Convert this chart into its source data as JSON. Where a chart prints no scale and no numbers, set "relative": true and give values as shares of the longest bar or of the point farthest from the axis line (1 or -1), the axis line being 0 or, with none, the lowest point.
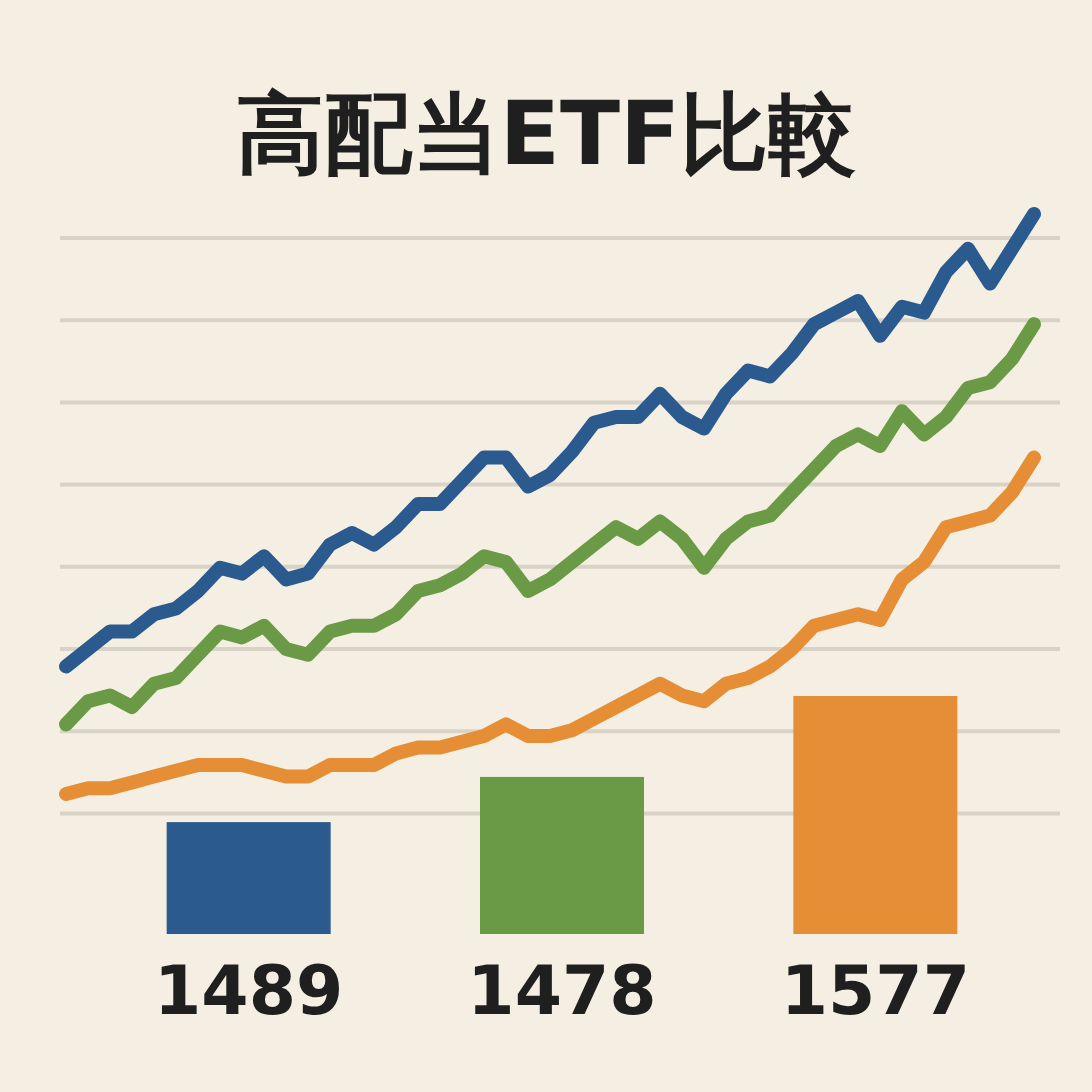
{
  "chart_data": [
    {
      "type": "line",
      "title": "高配当ETF比較",
      "relative": true,
      "grid": "y",
      "marker": "none",
      "line_style": "solid",
      "categories": [
        null,
        null,
        null,
        null,
        null,
        null,
        null,
        null,
        null,
        null,
        null,
        null,
        null,
        null,
        null,
        null,
        null,
        null,
        null,
        null,
        null,
        null,
        null,
        null,
        null,
        null,
        null,
        null,
        null,
        null,
        null,
        null,
        null,
        null,
        null,
        null,
        null,
        null,
        null,
        null,
        null,
        null,
        null,
        null,
        null
      ],
      "series": [
        {
          "color": "#2b5a8e",
          "values": [
            0.22,
            0.25,
            0.28,
            0.28,
            0.31,
            0.32,
            0.35,
            0.39,
            0.38,
            0.41,
            0.37,
            0.38,
            0.43,
            0.45,
            0.43,
            0.46,
            0.5,
            0.5,
            0.54,
            0.58,
            0.58,
            0.53,
            0.55,
            0.59,
            0.64,
            0.65,
            0.65,
            0.69,
            0.65,
            0.63,
            0.69,
            0.73,
            0.72,
            0.76,
            0.81,
            0.83,
            0.85,
            0.79,
            0.84,
            0.83,
            0.9,
            0.94,
            0.88,
            0.94,
            1
          ]
        },
        {
          "color": "#6b9a47",
          "values": [
            0.12,
            0.16,
            0.17,
            0.15,
            0.19,
            0.2,
            0.24,
            0.28,
            0.27,
            0.29,
            0.25,
            0.24,
            0.28,
            0.29,
            0.29,
            0.31,
            0.35,
            0.36,
            0.38,
            0.41,
            0.4,
            0.35,
            0.37,
            0.4,
            0.43,
            0.46,
            0.44,
            0.47,
            0.44,
            0.39,
            0.44,
            0.47,
            0.48,
            0.52,
            0.56,
            0.6,
            0.62,
            0.6,
            0.66,
            0.62,
            0.65,
            0.7,
            0.71,
            0.75,
            0.81
          ]
        },
        {
          "color": "#e58e35",
          "values": [
            0,
            0.01,
            0.01,
            0.02,
            0.03,
            0.04,
            0.05,
            0.05,
            0.05,
            0.04,
            0.03,
            0.03,
            0.05,
            0.05,
            0.05,
            0.07,
            0.08,
            0.08,
            0.09,
            0.1,
            0.12,
            0.1,
            0.1,
            0.11,
            0.13,
            0.15,
            0.17,
            0.19,
            0.17,
            0.16,
            0.19,
            0.2,
            0.22,
            0.25,
            0.29,
            0.3,
            0.31,
            0.3,
            0.37,
            0.4,
            0.46,
            0.47,
            0.48,
            0.52,
            0.58
          ]
        }
      ]
    },
    {
      "type": "bar",
      "relative": true,
      "categories": [
        "1489",
        "1478",
        "1577"
      ],
      "values": [
        0.47,
        0.66,
        1
      ],
      "colors": [
        "#2b5a8e",
        "#6b9a47",
        "#e58e35"
      ]
    }
  ]
}
